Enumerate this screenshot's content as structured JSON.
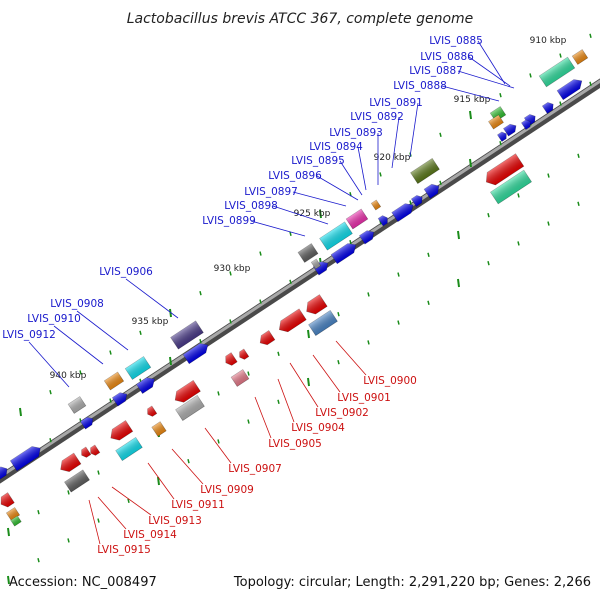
{
  "title": "Lactobacillus brevis ATCC 367, complete genome",
  "footer": {
    "accession": "Accession: NC_008497",
    "summary": "Topology: circular; Length: 2,291,220 bp; Genes: 2,266"
  },
  "scale_labels": [
    "910 kbp",
    "915 kbp",
    "920 kbp",
    "925 kbp",
    "930 kbp",
    "935 kbp",
    "940 kbp"
  ],
  "forward_labels": [
    "LVIS_0885",
    "LVIS_0886",
    "LVIS_0887",
    "LVIS_0888",
    "LVIS_0891",
    "LVIS_0892",
    "LVIS_0893",
    "LVIS_0894",
    "LVIS_0895",
    "LVIS_0896",
    "LVIS_0897",
    "LVIS_0898",
    "LVIS_0899",
    "LVIS_0906",
    "LVIS_0908",
    "LVIS_0910",
    "LVIS_0912"
  ],
  "reverse_labels": [
    "LVIS_0900",
    "LVIS_0901",
    "LVIS_0902",
    "LVIS_0904",
    "LVIS_0905",
    "LVIS_0907",
    "LVIS_0909",
    "LVIS_0911",
    "LVIS_0913",
    "LVIS_0914",
    "LVIS_0915"
  ],
  "colors": {
    "backbone": "#8a8a8a",
    "forward_cds": "#0000ee",
    "reverse_cds": "#ee0000",
    "tick": "#1a8c1a",
    "forward_label": "#1a1acc",
    "reverse_label": "#cc1111"
  }
}
